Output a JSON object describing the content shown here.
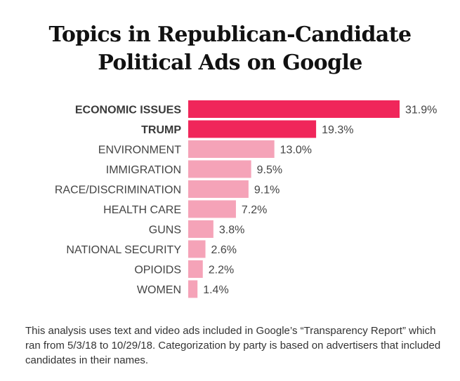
{
  "chart_data": {
    "type": "bar",
    "orientation": "horizontal",
    "title": "Topics in Republican-Candidate Political Ads on Google",
    "title_lines": [
      "Topics in Republican-Candidate",
      "Political Ads on Google"
    ],
    "categories": [
      "ECONOMIC ISSUES",
      "TRUMP",
      "ENVIRONMENT",
      "IMMIGRATION",
      "RACE/DISCRIMINATION",
      "HEALTH CARE",
      "GUNS",
      "NATIONAL SECURITY",
      "OPIOIDS",
      "WOMEN"
    ],
    "values": [
      31.9,
      19.3,
      13.0,
      9.5,
      9.1,
      7.2,
      3.8,
      2.6,
      2.2,
      1.4
    ],
    "value_labels": [
      "31.9%",
      "19.3%",
      "13.0%",
      "9.5%",
      "9.1%",
      "7.2%",
      "3.8%",
      "2.6%",
      "2.2%",
      "1.4%"
    ],
    "highlighted": [
      true,
      true,
      false,
      false,
      false,
      false,
      false,
      false,
      false,
      false
    ],
    "colors": {
      "highlight": "#f0265a",
      "normal": "#f5a3b8"
    },
    "xlim": [
      0,
      31.9
    ],
    "grid": false,
    "legend": false
  },
  "footnote": "This analysis uses text and video ads included in Google’s “Transparency Report” which ran from 5/3/18 to 10/29/18. Categorization by party is based on advertisers that included candidates in their names."
}
